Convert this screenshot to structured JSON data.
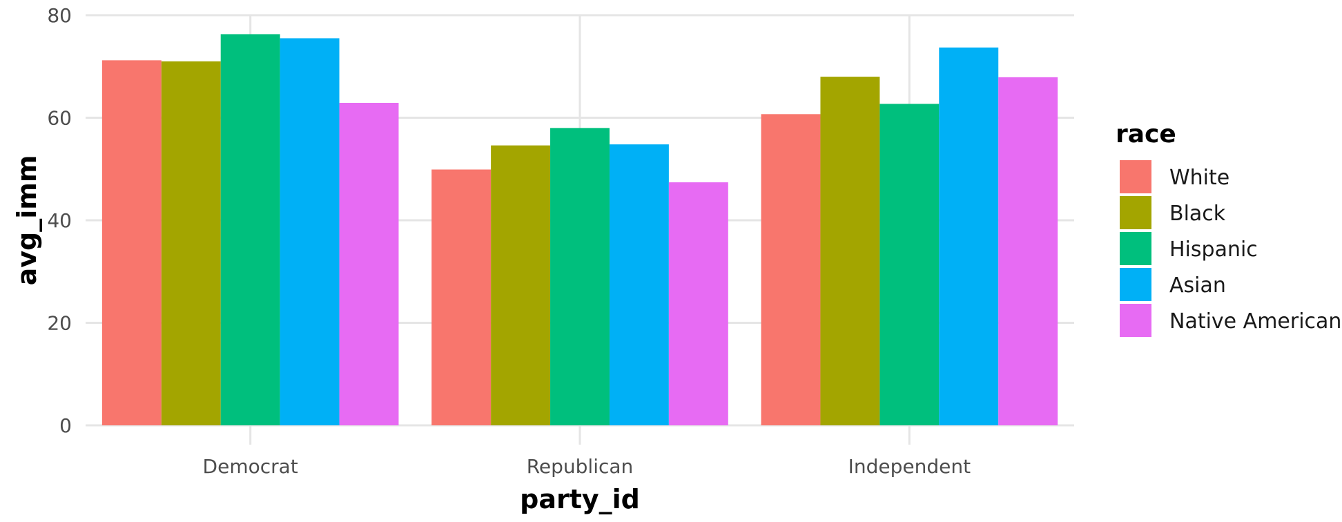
{
  "chart_data": {
    "type": "bar",
    "xlabel": "party_id",
    "ylabel": "avg_imm",
    "categories": [
      "Democrat",
      "Republican",
      "Independent"
    ],
    "ylim": [
      0,
      80
    ],
    "yticks": [
      0,
      20,
      40,
      60,
      80
    ],
    "grid": true,
    "legend": {
      "title": "race",
      "placement": "right"
    },
    "series": [
      {
        "name": "White",
        "color": "#F8766D",
        "values": [
          71.2,
          49.9,
          60.7
        ]
      },
      {
        "name": "Black",
        "color": "#A3A500",
        "values": [
          71.0,
          54.6,
          68.0
        ]
      },
      {
        "name": "Hispanic",
        "color": "#00BF7D",
        "values": [
          76.3,
          58.0,
          62.7
        ]
      },
      {
        "name": "Asian",
        "color": "#00B0F6",
        "values": [
          75.5,
          54.8,
          73.7
        ]
      },
      {
        "name": "Native American",
        "color": "#E76BF3",
        "values": [
          62.9,
          47.4,
          67.9
        ]
      }
    ]
  }
}
